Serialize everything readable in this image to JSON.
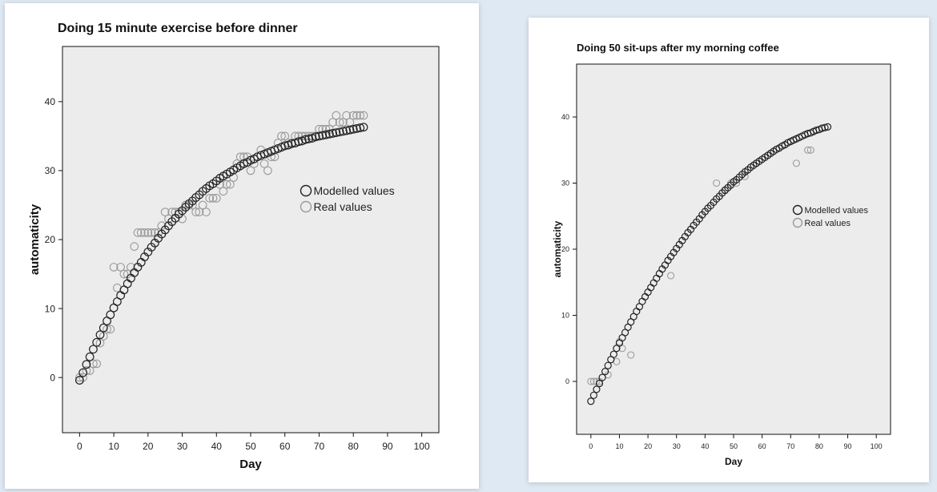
{
  "chart_data": [
    {
      "type": "scatter",
      "title": "Doing 15 minute exercise before dinner",
      "xlabel": "Day",
      "ylabel": "automaticity",
      "xlim": [
        -5,
        105
      ],
      "ylim": [
        -8,
        48
      ],
      "xticks": [
        0,
        10,
        20,
        30,
        40,
        50,
        60,
        70,
        80,
        90,
        100
      ],
      "yticks": [
        0,
        10,
        20,
        30,
        40
      ],
      "legend_position": "right",
      "grid": false,
      "background": "#ececec",
      "series": [
        {
          "name": "Modelled values",
          "color": "#222222",
          "points": [
            [
              0,
              -0.4
            ],
            [
              1,
              0.7
            ],
            [
              2,
              1.9
            ],
            [
              3,
              3.0
            ],
            [
              4,
              4.1
            ],
            [
              5,
              5.1
            ],
            [
              6,
              6.2
            ],
            [
              7,
              7.2
            ],
            [
              8,
              8.2
            ],
            [
              9,
              9.1
            ],
            [
              10,
              10.1
            ],
            [
              11,
              11.0
            ],
            [
              12,
              11.9
            ],
            [
              13,
              12.7
            ],
            [
              14,
              13.6
            ],
            [
              15,
              14.4
            ],
            [
              16,
              15.2
            ],
            [
              17,
              16.0
            ],
            [
              18,
              16.7
            ],
            [
              19,
              17.5
            ],
            [
              20,
              18.2
            ],
            [
              21,
              18.9
            ],
            [
              22,
              19.5
            ],
            [
              23,
              20.2
            ],
            [
              24,
              20.8
            ],
            [
              25,
              21.4
            ],
            [
              26,
              22.0
            ],
            [
              27,
              22.6
            ],
            [
              28,
              23.1
            ],
            [
              29,
              23.7
            ],
            [
              30,
              24.2
            ],
            [
              31,
              24.7
            ],
            [
              32,
              25.2
            ],
            [
              33,
              25.6
            ],
            [
              34,
              26.1
            ],
            [
              35,
              26.5
            ],
            [
              36,
              27.0
            ],
            [
              37,
              27.4
            ],
            [
              38,
              27.8
            ],
            [
              39,
              28.1
            ],
            [
              40,
              28.5
            ],
            [
              41,
              28.9
            ],
            [
              42,
              29.2
            ],
            [
              43,
              29.5
            ],
            [
              44,
              29.8
            ],
            [
              45,
              30.1
            ],
            [
              46,
              30.4
            ],
            [
              47,
              30.7
            ],
            [
              48,
              31.0
            ],
            [
              49,
              31.2
            ],
            [
              50,
              31.5
            ],
            [
              51,
              31.7
            ],
            [
              52,
              32.0
            ],
            [
              53,
              32.2
            ],
            [
              54,
              32.4
            ],
            [
              55,
              32.6
            ],
            [
              56,
              32.8
            ],
            [
              57,
              33.0
            ],
            [
              58,
              33.2
            ],
            [
              59,
              33.4
            ],
            [
              60,
              33.6
            ],
            [
              61,
              33.7
            ],
            [
              62,
              33.9
            ],
            [
              63,
              34.0
            ],
            [
              64,
              34.2
            ],
            [
              65,
              34.3
            ],
            [
              66,
              34.5
            ],
            [
              67,
              34.6
            ],
            [
              68,
              34.7
            ],
            [
              69,
              34.9
            ],
            [
              70,
              35.0
            ],
            [
              71,
              35.1
            ],
            [
              72,
              35.2
            ],
            [
              73,
              35.3
            ],
            [
              74,
              35.4
            ],
            [
              75,
              35.5
            ],
            [
              76,
              35.6
            ],
            [
              77,
              35.7
            ],
            [
              78,
              35.8
            ],
            [
              79,
              35.9
            ],
            [
              80,
              36.0
            ],
            [
              81,
              36.1
            ],
            [
              82,
              36.2
            ],
            [
              83,
              36.3
            ]
          ]
        },
        {
          "name": "Real values",
          "color": "#9a9a9a",
          "points": [
            [
              0,
              0
            ],
            [
              1,
              0
            ],
            [
              2,
              1
            ],
            [
              3,
              1
            ],
            [
              4,
              2
            ],
            [
              5,
              2
            ],
            [
              6,
              5
            ],
            [
              7,
              6
            ],
            [
              8,
              7
            ],
            [
              9,
              7
            ],
            [
              10,
              16
            ],
            [
              11,
              13
            ],
            [
              12,
              16
            ],
            [
              13,
              15
            ],
            [
              14,
              15
            ],
            [
              15,
              16
            ],
            [
              16,
              19
            ],
            [
              17,
              21
            ],
            [
              18,
              21
            ],
            [
              19,
              21
            ],
            [
              20,
              21
            ],
            [
              21,
              21
            ],
            [
              22,
              21
            ],
            [
              23,
              21
            ],
            [
              24,
              22
            ],
            [
              25,
              24
            ],
            [
              26,
              23
            ],
            [
              27,
              24
            ],
            [
              28,
              24
            ],
            [
              29,
              24
            ],
            [
              30,
              23
            ],
            [
              31,
              25
            ],
            [
              32,
              25
            ],
            [
              33,
              25
            ],
            [
              34,
              24
            ],
            [
              35,
              24
            ],
            [
              36,
              25
            ],
            [
              37,
              24
            ],
            [
              38,
              26
            ],
            [
              39,
              26
            ],
            [
              40,
              26
            ],
            [
              41,
              28
            ],
            [
              42,
              27
            ],
            [
              43,
              28
            ],
            [
              44,
              28
            ],
            [
              45,
              29
            ],
            [
              46,
              31
            ],
            [
              47,
              32
            ],
            [
              48,
              32
            ],
            [
              49,
              32
            ],
            [
              50,
              30
            ],
            [
              51,
              31
            ],
            [
              52,
              32
            ],
            [
              53,
              33
            ],
            [
              54,
              31
            ],
            [
              55,
              30
            ],
            [
              56,
              32
            ],
            [
              57,
              32
            ],
            [
              58,
              34
            ],
            [
              59,
              35
            ],
            [
              60,
              35
            ],
            [
              61,
              34
            ],
            [
              62,
              34
            ],
            [
              63,
              35
            ],
            [
              64,
              35
            ],
            [
              65,
              35
            ],
            [
              66,
              35
            ],
            [
              67,
              35
            ],
            [
              68,
              35
            ],
            [
              69,
              35
            ],
            [
              70,
              36
            ],
            [
              71,
              36
            ],
            [
              72,
              36
            ],
            [
              73,
              36
            ],
            [
              74,
              37
            ],
            [
              75,
              38
            ],
            [
              76,
              37
            ],
            [
              77,
              37
            ],
            [
              78,
              38
            ],
            [
              79,
              37
            ],
            [
              80,
              38
            ],
            [
              81,
              38
            ],
            [
              82,
              38
            ],
            [
              83,
              38
            ]
          ]
        }
      ]
    },
    {
      "type": "scatter",
      "title": "Doing 50 sit-ups after my morning coffee",
      "xlabel": "Day",
      "ylabel": "automaticity",
      "xlim": [
        -5,
        105
      ],
      "ylim": [
        -8,
        48
      ],
      "xticks": [
        0,
        10,
        20,
        30,
        40,
        50,
        60,
        70,
        80,
        90,
        100
      ],
      "yticks": [
        0,
        10,
        20,
        30,
        40
      ],
      "legend_position": "right",
      "grid": false,
      "background": "#ececec",
      "series": [
        {
          "name": "Modelled values",
          "color": "#222222",
          "points": [
            [
              0,
              -3.0
            ],
            [
              1,
              -2.1
            ],
            [
              2,
              -1.2
            ],
            [
              3,
              -0.3
            ],
            [
              4,
              0.6
            ],
            [
              5,
              1.5
            ],
            [
              6,
              2.4
            ],
            [
              7,
              3.3
            ],
            [
              8,
              4.1
            ],
            [
              9,
              5.0
            ],
            [
              10,
              5.8
            ],
            [
              11,
              6.6
            ],
            [
              12,
              7.4
            ],
            [
              13,
              8.2
            ],
            [
              14,
              9.0
            ],
            [
              15,
              9.8
            ],
            [
              16,
              10.6
            ],
            [
              17,
              11.3
            ],
            [
              18,
              12.1
            ],
            [
              19,
              12.8
            ],
            [
              20,
              13.5
            ],
            [
              21,
              14.2
            ],
            [
              22,
              14.9
            ],
            [
              23,
              15.6
            ],
            [
              24,
              16.3
            ],
            [
              25,
              17.0
            ],
            [
              26,
              17.6
            ],
            [
              27,
              18.3
            ],
            [
              28,
              18.9
            ],
            [
              29,
              19.5
            ],
            [
              30,
              20.1
            ],
            [
              31,
              20.7
            ],
            [
              32,
              21.3
            ],
            [
              33,
              21.9
            ],
            [
              34,
              22.5
            ],
            [
              35,
              23.0
            ],
            [
              36,
              23.6
            ],
            [
              37,
              24.1
            ],
            [
              38,
              24.6
            ],
            [
              39,
              25.2
            ],
            [
              40,
              25.7
            ],
            [
              41,
              26.2
            ],
            [
              42,
              26.6
            ],
            [
              43,
              27.1
            ],
            [
              44,
              27.6
            ],
            [
              45,
              28.0
            ],
            [
              46,
              28.5
            ],
            [
              47,
              28.9
            ],
            [
              48,
              29.3
            ],
            [
              49,
              29.7
            ],
            [
              50,
              30.2
            ],
            [
              51,
              30.5
            ],
            [
              52,
              30.9
            ],
            [
              53,
              31.3
            ],
            [
              54,
              31.7
            ],
            [
              55,
              32.0
            ],
            [
              56,
              32.4
            ],
            [
              57,
              32.7
            ],
            [
              58,
              33.0
            ],
            [
              59,
              33.3
            ],
            [
              60,
              33.6
            ],
            [
              61,
              33.9
            ],
            [
              62,
              34.2
            ],
            [
              63,
              34.5
            ],
            [
              64,
              34.8
            ],
            [
              65,
              35.1
            ],
            [
              66,
              35.3
            ],
            [
              67,
              35.6
            ],
            [
              68,
              35.8
            ],
            [
              69,
              36.1
            ],
            [
              70,
              36.3
            ],
            [
              71,
              36.5
            ],
            [
              72,
              36.7
            ],
            [
              73,
              36.9
            ],
            [
              74,
              37.1
            ],
            [
              75,
              37.3
            ],
            [
              76,
              37.5
            ],
            [
              77,
              37.6
            ],
            [
              78,
              37.8
            ],
            [
              79,
              38.0
            ],
            [
              80,
              38.1
            ],
            [
              81,
              38.3
            ],
            [
              82,
              38.4
            ],
            [
              83,
              38.5
            ]
          ]
        },
        {
          "name": "Real values",
          "color": "#9a9a9a",
          "points": [
            [
              0,
              0
            ],
            [
              1,
              0
            ],
            [
              2,
              0
            ],
            [
              3,
              0
            ],
            [
              6,
              1
            ],
            [
              9,
              3
            ],
            [
              10,
              6
            ],
            [
              11,
              5
            ],
            [
              14,
              4
            ],
            [
              28,
              16
            ],
            [
              44,
              30
            ],
            [
              47,
              29
            ],
            [
              49,
              30
            ],
            [
              51,
              30
            ],
            [
              54,
              31
            ],
            [
              72,
              33
            ],
            [
              76,
              35
            ],
            [
              77,
              35
            ]
          ]
        }
      ]
    }
  ]
}
